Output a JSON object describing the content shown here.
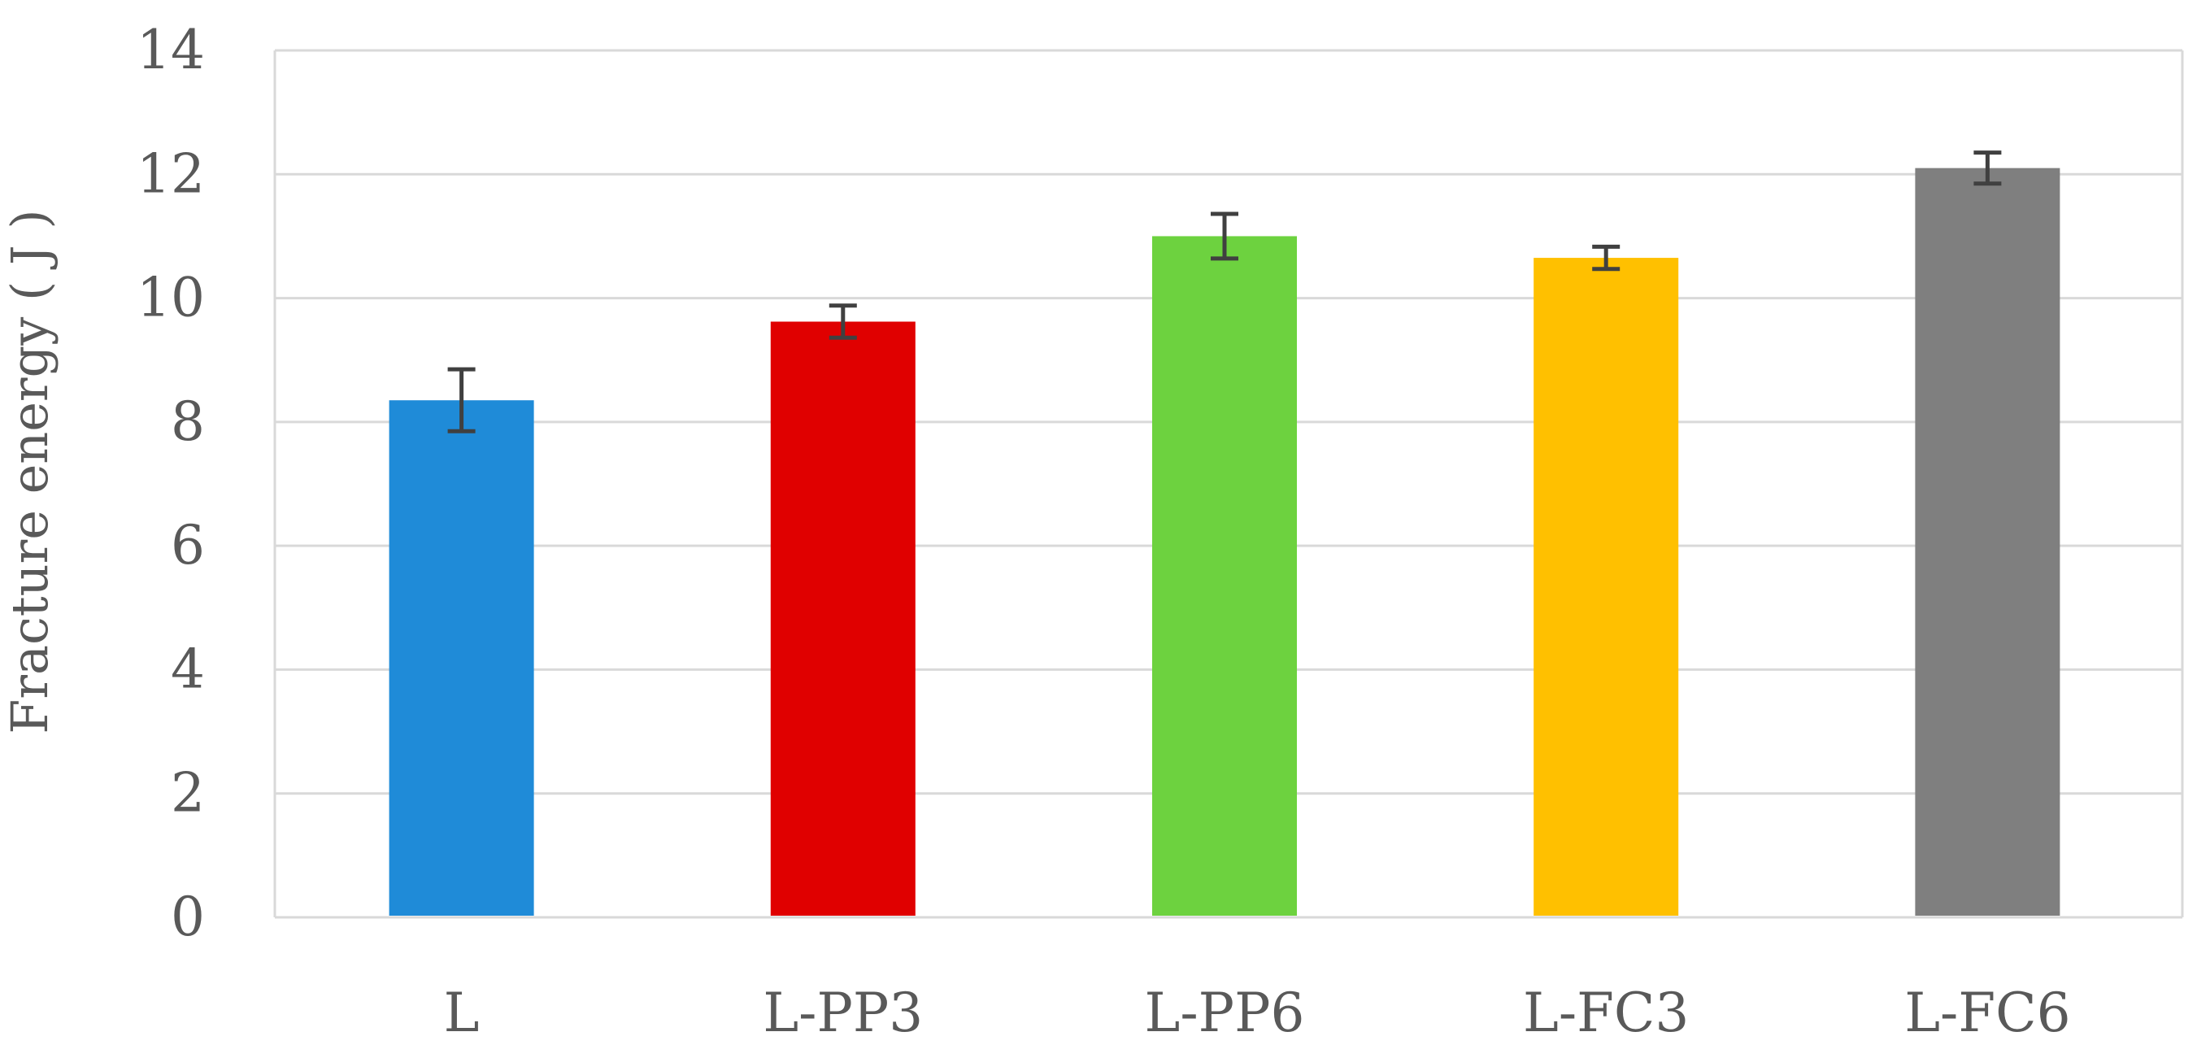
{
  "chart_data": {
    "type": "bar",
    "title": "",
    "xlabel": "",
    "ylabel": "Fracture energy ( J )",
    "categories": [
      "L",
      "L-PP3",
      "L-PP6",
      "L-FC3",
      "L-FC6"
    ],
    "values": [
      8.35,
      9.62,
      11.0,
      10.65,
      12.1
    ],
    "error": [
      0.5,
      0.26,
      0.36,
      0.18,
      0.25
    ],
    "bar_colors": [
      "#1f8bd8",
      "#e00000",
      "#6dd23f",
      "#ffc000",
      "#7f7f7f"
    ],
    "ylim": [
      0,
      14
    ],
    "yticks": [
      0,
      2,
      4,
      6,
      8,
      10,
      12,
      14
    ],
    "grid": true,
    "legend": "none",
    "colors": {
      "grid": "#d9d9d9",
      "error_bar": "#404040",
      "text": "#595959"
    }
  }
}
